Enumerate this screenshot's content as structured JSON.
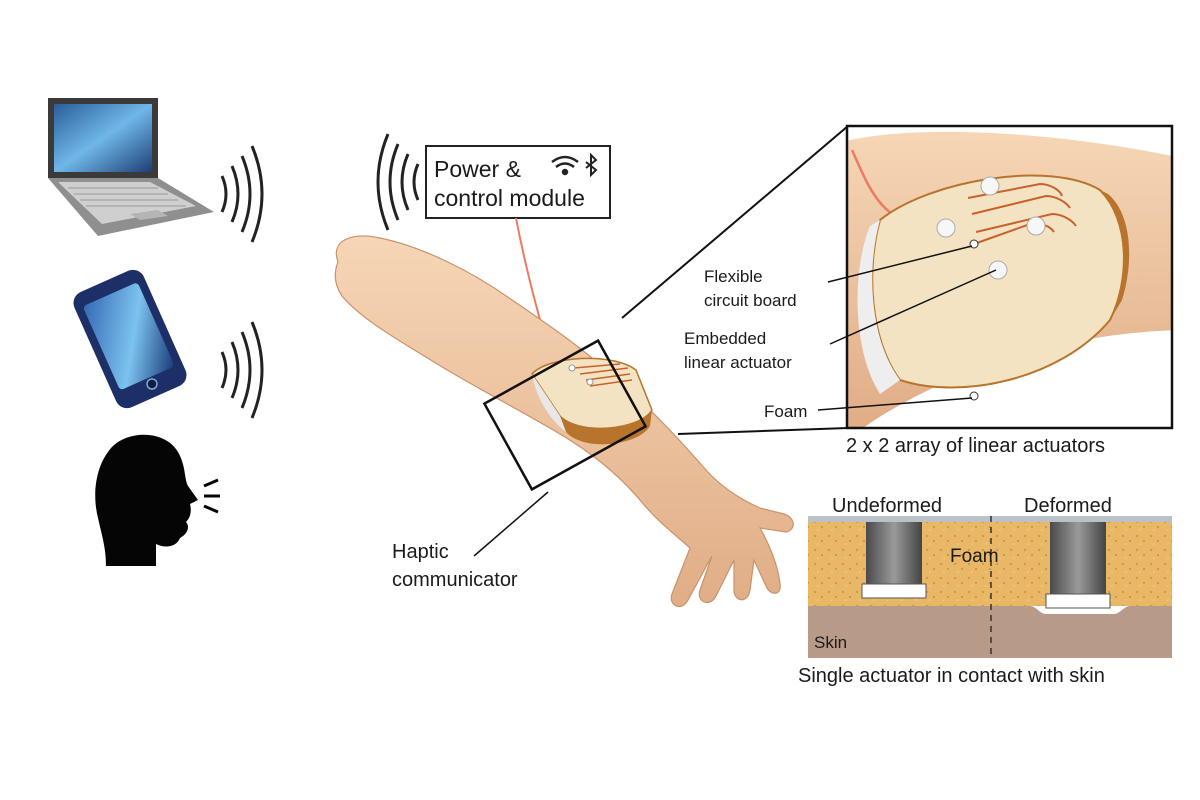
{
  "labels": {
    "power_line1": "Power &",
    "power_line2": "control module",
    "flexible_line1": "Flexible",
    "flexible_line2": "circuit board",
    "embedded_line1": "Embedded",
    "embedded_line2": "linear actuator",
    "foam": "Foam",
    "array_caption": "2 x 2 array of linear actuators",
    "haptic_line1": "Haptic",
    "haptic_line2": "communicator",
    "undeformed": "Undeformed",
    "deformed": "Deformed",
    "foam_inset": "Foam",
    "skin": "Skin",
    "single_caption": "Single actuator in contact with skin"
  },
  "icons": [
    "laptop-icon",
    "phone-icon",
    "speaking-head-icon",
    "wifi-icon",
    "bluetooth-icon"
  ],
  "colors": {
    "skin": "#f2c9a4",
    "band": "#f3e3c2",
    "band_edge": "#b8742c",
    "circuit": "#c8622c",
    "wire": "#ee7a60",
    "foam": "#e9b866",
    "skin_inset": "#b89a88"
  }
}
